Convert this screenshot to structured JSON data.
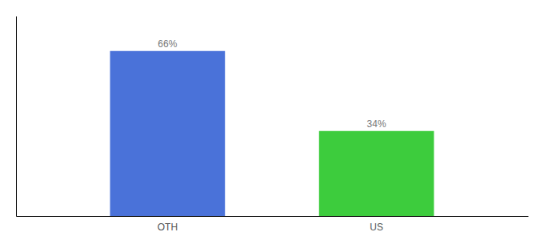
{
  "chart_data": {
    "type": "bar",
    "categories": [
      "OTH",
      "US"
    ],
    "values": [
      66,
      34
    ],
    "value_labels": [
      "66%",
      "34%"
    ],
    "data_labels": true,
    "colors": [
      "#4a72d9",
      "#3dcc3d"
    ],
    "ylim": [
      0,
      80
    ],
    "tick_labels": "x"
  }
}
